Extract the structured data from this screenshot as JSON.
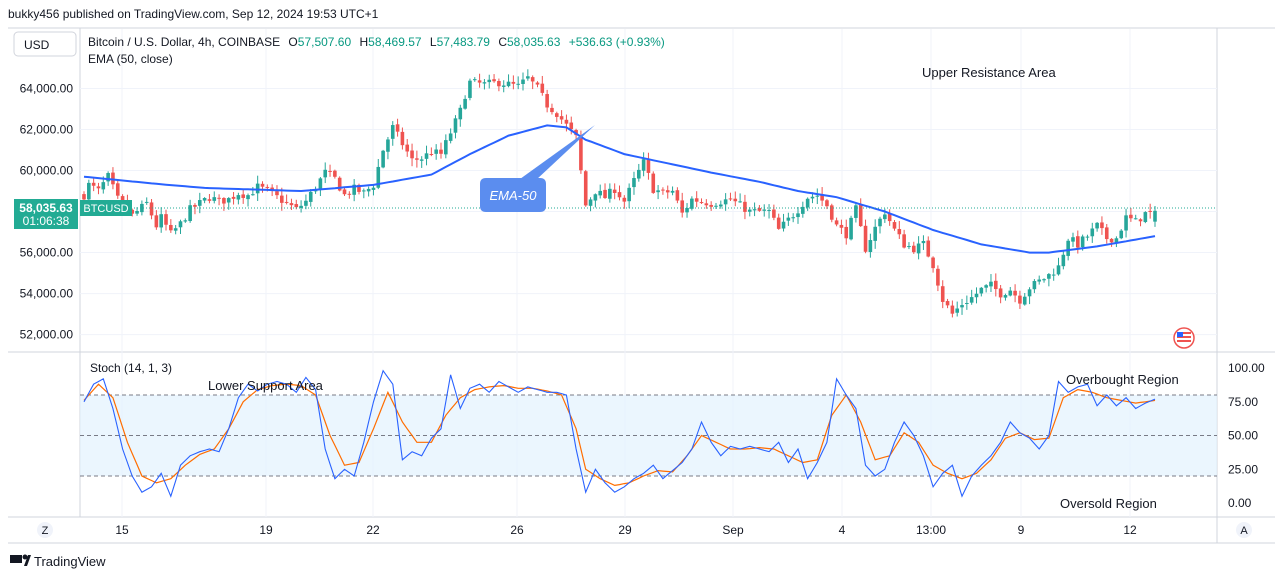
{
  "header": {
    "published": "bukky456 published on TradingView.com, Sep 12, 2024 19:53 UTC+1"
  },
  "currency_button": "USD",
  "legend": {
    "symbol": "Bitcoin / U.S. Dollar, 4h, COINBASE",
    "o_label": "O",
    "o_value": "57,507.60",
    "h_label": "H",
    "h_value": "58,469.57",
    "l_label": "L",
    "l_value": "57,483.79",
    "c_label": "C",
    "c_value": "58,035.63",
    "change": "+536.63 (+0.93%)",
    "ema": "EMA (50, close)"
  },
  "price_tag": {
    "price": "58,035.63",
    "timer": "01:06:38",
    "symbol": "BTCUSD"
  },
  "annotations": {
    "upper_resistance": "Upper Resistance Area",
    "ema50": "EMA-50",
    "lower_support": "Lower Support Area",
    "overbought": "Overbought Region",
    "oversold": "Oversold Region"
  },
  "stoch": {
    "label": "Stoch (14, 1, 3)"
  },
  "bottom_bar": {
    "left_button": "Z",
    "right_button": "A"
  },
  "footer": {
    "brand": "TradingView"
  },
  "colors": {
    "up": "#26a69a",
    "down": "#ef5350",
    "ema": "#2962ff",
    "k_line": "#2962ff",
    "d_line": "#ff6d00",
    "band": "#e3f2fd",
    "tag": "#22ab94",
    "callout": "#5b8def"
  },
  "chart_data": {
    "type": "candlestick",
    "timeframe": "4h",
    "price_axis": {
      "ticks": [
        64000,
        62000,
        60000,
        58000,
        56000,
        54000,
        52000
      ],
      "tick_labels": [
        "64,000.00",
        "62,000.00",
        "60,000.00",
        "58,000.00",
        "56,000.00",
        "54,000.00",
        "52,000.00"
      ],
      "range": [
        51200,
        66900
      ]
    },
    "time_axis": {
      "labels": [
        "15",
        "19",
        "22",
        "26",
        "29",
        "Sep",
        "4",
        "13:00",
        "9",
        "12"
      ]
    },
    "price_anchors": [
      [
        0,
        58800
      ],
      [
        1,
        59300
      ],
      [
        3,
        59000
      ],
      [
        5,
        59700
      ],
      [
        7,
        58600
      ],
      [
        10,
        57800
      ],
      [
        13,
        58400
      ],
      [
        15,
        57300
      ],
      [
        16,
        57700
      ],
      [
        18,
        56900
      ],
      [
        20,
        57400
      ],
      [
        22,
        58100
      ],
      [
        24,
        58400
      ],
      [
        26,
        58700
      ],
      [
        28,
        58500
      ],
      [
        30,
        58600
      ],
      [
        32,
        58900
      ],
      [
        34,
        58800
      ],
      [
        36,
        59200
      ],
      [
        38,
        59000
      ],
      [
        42,
        58400
      ],
      [
        44,
        58100
      ],
      [
        46,
        58500
      ],
      [
        48,
        59200
      ],
      [
        50,
        59900
      ],
      [
        52,
        59600
      ],
      [
        54,
        58800
      ],
      [
        56,
        59100
      ],
      [
        58,
        58900
      ],
      [
        60,
        59300
      ],
      [
        62,
        61000
      ],
      [
        64,
        62100
      ],
      [
        66,
        61300
      ],
      [
        68,
        60500
      ],
      [
        70,
        60600
      ],
      [
        72,
        60900
      ],
      [
        74,
        60800
      ],
      [
        78,
        62900
      ],
      [
        79,
        63700
      ],
      [
        80,
        64300
      ],
      [
        83,
        64200
      ],
      [
        86,
        64300
      ],
      [
        90,
        64100
      ],
      [
        92,
        64500
      ],
      [
        94,
        64000
      ],
      [
        96,
        63200
      ],
      [
        98,
        62800
      ],
      [
        100,
        62200
      ],
      [
        102,
        61600
      ],
      [
        104,
        58300
      ],
      [
        106,
        59000
      ],
      [
        108,
        58700
      ],
      [
        110,
        59100
      ],
      [
        112,
        58500
      ],
      [
        114,
        59500
      ],
      [
        116,
        60400
      ],
      [
        118,
        59100
      ],
      [
        120,
        58900
      ],
      [
        122,
        59000
      ],
      [
        124,
        57900
      ],
      [
        126,
        58600
      ],
      [
        130,
        58400
      ],
      [
        134,
        58600
      ],
      [
        138,
        58000
      ],
      [
        142,
        58000
      ],
      [
        144,
        57100
      ],
      [
        148,
        58100
      ],
      [
        150,
        58700
      ],
      [
        152,
        58800
      ],
      [
        154,
        58300
      ],
      [
        156,
        57300
      ],
      [
        158,
        56900
      ],
      [
        160,
        58100
      ],
      [
        162,
        56200
      ],
      [
        164,
        57200
      ],
      [
        166,
        58000
      ],
      [
        168,
        57100
      ],
      [
        170,
        56400
      ],
      [
        172,
        56200
      ],
      [
        174,
        56400
      ],
      [
        176,
        55400
      ],
      [
        178,
        53700
      ],
      [
        180,
        53000
      ],
      [
        182,
        53500
      ],
      [
        184,
        53800
      ],
      [
        186,
        54200
      ],
      [
        188,
        54400
      ],
      [
        190,
        54000
      ],
      [
        192,
        54200
      ],
      [
        194,
        53700
      ],
      [
        196,
        54300
      ],
      [
        198,
        54600
      ],
      [
        200,
        54900
      ],
      [
        202,
        55300
      ],
      [
        204,
        56700
      ],
      [
        206,
        56400
      ],
      [
        208,
        56800
      ],
      [
        210,
        57300
      ],
      [
        212,
        56700
      ],
      [
        214,
        56700
      ],
      [
        216,
        57700
      ],
      [
        218,
        57500
      ],
      [
        220,
        57900
      ],
      [
        222,
        57900
      ]
    ],
    "ema_anchors": [
      [
        0,
        59700
      ],
      [
        15,
        59350
      ],
      [
        25,
        59150
      ],
      [
        45,
        59000
      ],
      [
        60,
        59300
      ],
      [
        72,
        59800
      ],
      [
        80,
        60800
      ],
      [
        88,
        61700
      ],
      [
        96,
        62200
      ],
      [
        100,
        62100
      ],
      [
        104,
        61500
      ],
      [
        112,
        60800
      ],
      [
        120,
        60400
      ],
      [
        130,
        59900
      ],
      [
        140,
        59450
      ],
      [
        148,
        59000
      ],
      [
        156,
        58700
      ],
      [
        166,
        58000
      ],
      [
        176,
        57100
      ],
      [
        186,
        56400
      ],
      [
        196,
        56000
      ],
      [
        200,
        56000
      ],
      [
        210,
        56300
      ],
      [
        222,
        56800
      ]
    ],
    "ema_period": 50,
    "stochastic": {
      "params": "14, 1, 3",
      "levels": [
        80,
        50,
        20
      ],
      "axis_labels": [
        "100.00",
        "75.00",
        "50.00",
        "25.00",
        "0.00"
      ],
      "k_anchors": [
        [
          0,
          75
        ],
        [
          2,
          88
        ],
        [
          4,
          92
        ],
        [
          6,
          70
        ],
        [
          8,
          40
        ],
        [
          10,
          20
        ],
        [
          12,
          8
        ],
        [
          14,
          12
        ],
        [
          16,
          22
        ],
        [
          18,
          5
        ],
        [
          20,
          28
        ],
        [
          22,
          35
        ],
        [
          24,
          38
        ],
        [
          26,
          40
        ],
        [
          28,
          38
        ],
        [
          30,
          55
        ],
        [
          32,
          78
        ],
        [
          34,
          88
        ],
        [
          36,
          83
        ],
        [
          38,
          88
        ],
        [
          40,
          90
        ],
        [
          42,
          88
        ],
        [
          44,
          82
        ],
        [
          46,
          93
        ],
        [
          48,
          84
        ],
        [
          50,
          40
        ],
        [
          52,
          18
        ],
        [
          54,
          25
        ],
        [
          56,
          20
        ],
        [
          58,
          45
        ],
        [
          60,
          75
        ],
        [
          62,
          98
        ],
        [
          64,
          88
        ],
        [
          66,
          32
        ],
        [
          68,
          38
        ],
        [
          70,
          35
        ],
        [
          72,
          48
        ],
        [
          74,
          55
        ],
        [
          76,
          95
        ],
        [
          78,
          70
        ],
        [
          80,
          85
        ],
        [
          82,
          88
        ],
        [
          84,
          82
        ],
        [
          86,
          90
        ],
        [
          88,
          86
        ],
        [
          90,
          82
        ],
        [
          92,
          86
        ],
        [
          94,
          84
        ],
        [
          96,
          82
        ],
        [
          98,
          82
        ],
        [
          100,
          80
        ],
        [
          102,
          40
        ],
        [
          104,
          8
        ],
        [
          106,
          25
        ],
        [
          108,
          15
        ],
        [
          110,
          8
        ],
        [
          112,
          12
        ],
        [
          114,
          18
        ],
        [
          116,
          22
        ],
        [
          118,
          28
        ],
        [
          120,
          18
        ],
        [
          122,
          24
        ],
        [
          124,
          30
        ],
        [
          126,
          40
        ],
        [
          128,
          60
        ],
        [
          130,
          45
        ],
        [
          132,
          35
        ],
        [
          134,
          42
        ],
        [
          136,
          40
        ],
        [
          138,
          42
        ],
        [
          140,
          40
        ],
        [
          142,
          38
        ],
        [
          144,
          45
        ],
        [
          146,
          30
        ],
        [
          148,
          40
        ],
        [
          150,
          18
        ],
        [
          152,
          30
        ],
        [
          154,
          45
        ],
        [
          156,
          92
        ],
        [
          158,
          80
        ],
        [
          160,
          70
        ],
        [
          162,
          28
        ],
        [
          164,
          20
        ],
        [
          166,
          25
        ],
        [
          168,
          45
        ],
        [
          170,
          60
        ],
        [
          172,
          50
        ],
        [
          174,
          35
        ],
        [
          176,
          12
        ],
        [
          178,
          22
        ],
        [
          180,
          28
        ],
        [
          182,
          5
        ],
        [
          184,
          20
        ],
        [
          186,
          28
        ],
        [
          188,
          35
        ],
        [
          190,
          45
        ],
        [
          192,
          60
        ],
        [
          194,
          52
        ],
        [
          196,
          48
        ],
        [
          198,
          40
        ],
        [
          200,
          50
        ],
        [
          202,
          90
        ],
        [
          204,
          82
        ],
        [
          206,
          86
        ],
        [
          208,
          88
        ],
        [
          210,
          72
        ],
        [
          212,
          80
        ],
        [
          214,
          72
        ],
        [
          216,
          78
        ],
        [
          218,
          70
        ],
        [
          220,
          74
        ],
        [
          222,
          77
        ]
      ],
      "d_anchors": [
        [
          0,
          76
        ],
        [
          3,
          88
        ],
        [
          6,
          78
        ],
        [
          9,
          45
        ],
        [
          12,
          20
        ],
        [
          15,
          15
        ],
        [
          18,
          18
        ],
        [
          21,
          28
        ],
        [
          24,
          36
        ],
        [
          27,
          40
        ],
        [
          30,
          55
        ],
        [
          33,
          75
        ],
        [
          36,
          84
        ],
        [
          39,
          87
        ],
        [
          42,
          88
        ],
        [
          45,
          87
        ],
        [
          48,
          80
        ],
        [
          51,
          50
        ],
        [
          54,
          28
        ],
        [
          57,
          30
        ],
        [
          60,
          55
        ],
        [
          63,
          82
        ],
        [
          66,
          60
        ],
        [
          69,
          45
        ],
        [
          72,
          45
        ],
        [
          75,
          65
        ],
        [
          78,
          78
        ],
        [
          81,
          84
        ],
        [
          84,
          86
        ],
        [
          87,
          87
        ],
        [
          90,
          85
        ],
        [
          93,
          85
        ],
        [
          96,
          83
        ],
        [
          99,
          80
        ],
        [
          102,
          55
        ],
        [
          104,
          25
        ],
        [
          107,
          18
        ],
        [
          110,
          13
        ],
        [
          113,
          15
        ],
        [
          116,
          20
        ],
        [
          119,
          24
        ],
        [
          122,
          23
        ],
        [
          125,
          35
        ],
        [
          128,
          50
        ],
        [
          131,
          45
        ],
        [
          134,
          40
        ],
        [
          137,
          40
        ],
        [
          140,
          41
        ],
        [
          143,
          40
        ],
        [
          146,
          35
        ],
        [
          149,
          30
        ],
        [
          152,
          32
        ],
        [
          155,
          65
        ],
        [
          158,
          80
        ],
        [
          161,
          60
        ],
        [
          164,
          32
        ],
        [
          167,
          35
        ],
        [
          170,
          52
        ],
        [
          173,
          45
        ],
        [
          176,
          28
        ],
        [
          179,
          22
        ],
        [
          182,
          18
        ],
        [
          185,
          22
        ],
        [
          188,
          32
        ],
        [
          191,
          48
        ],
        [
          194,
          52
        ],
        [
          197,
          47
        ],
        [
          200,
          48
        ],
        [
          203,
          78
        ],
        [
          206,
          84
        ],
        [
          209,
          82
        ],
        [
          212,
          78
        ],
        [
          215,
          76
        ],
        [
          218,
          74
        ],
        [
          222,
          76
        ]
      ]
    }
  }
}
